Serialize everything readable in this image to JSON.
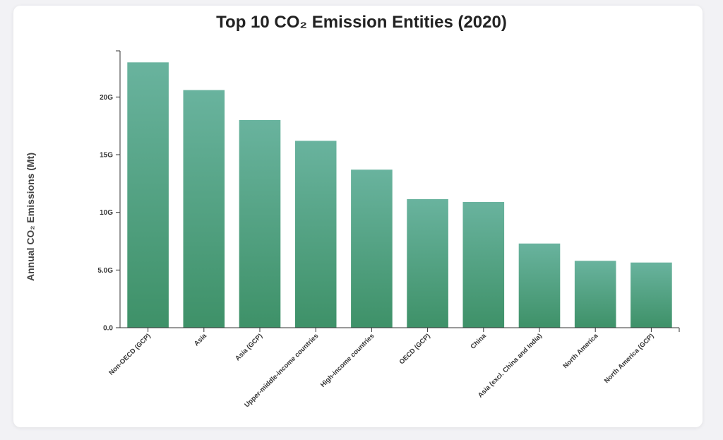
{
  "chart_data": {
    "type": "bar",
    "title": "Top 10 CO₂ Emission Entities (2020)",
    "ylabel": "Annual CO₂ Emissions (Mt)",
    "xlabel": "",
    "categories": [
      "Non-OECD (GCP)",
      "Asia",
      "Asia (GCP)",
      "Upper-middle-income countries",
      "High-income countries",
      "OECD (GCP)",
      "China",
      "Asia (excl. China and India)",
      "North America",
      "North America (GCP)"
    ],
    "values": [
      23000,
      20600,
      18000,
      16200,
      13700,
      11150,
      10900,
      7300,
      5800,
      5650
    ],
    "ylim": [
      0,
      24000
    ],
    "yticks": [
      {
        "value": 0,
        "label": "0.0"
      },
      {
        "value": 5000,
        "label": "5.0G"
      },
      {
        "value": 10000,
        "label": "10G"
      },
      {
        "value": 15000,
        "label": "15G"
      },
      {
        "value": 20000,
        "label": "20G"
      }
    ],
    "bar_color_top": "#69b39e",
    "bar_color_bottom": "#3e9168",
    "grid": false,
    "legend": "none"
  }
}
